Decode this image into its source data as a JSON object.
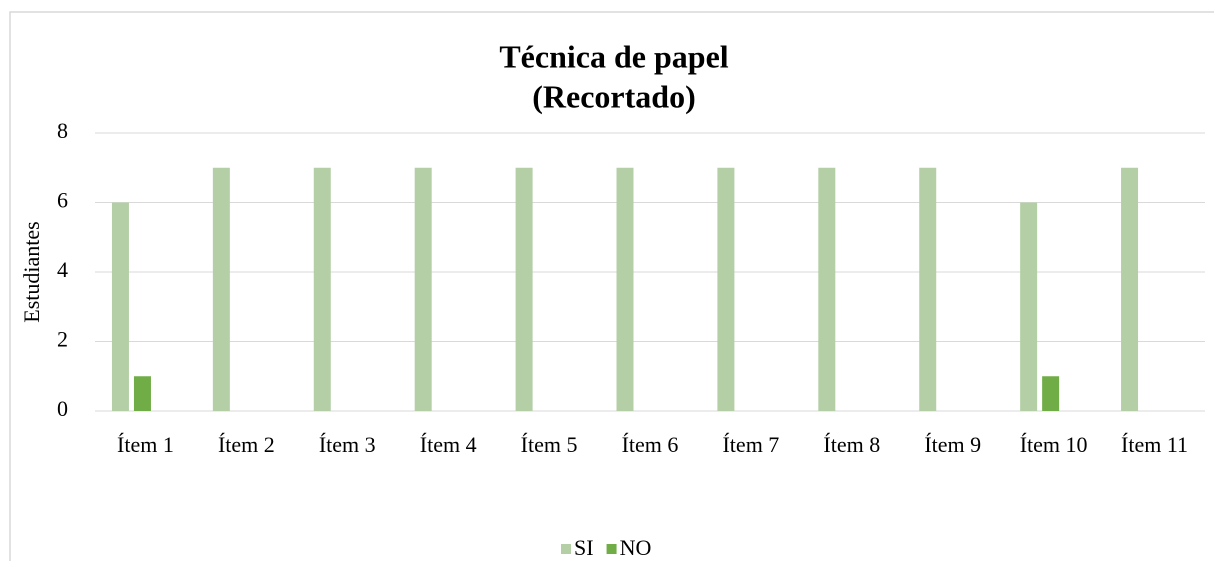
{
  "chart_data": {
    "type": "bar",
    "title": [
      "Técnica de papel",
      "(Recortado)"
    ],
    "y_label": "Estudiantes",
    "categories": [
      "Ítem 1",
      "Ítem 2",
      "Ítem 3",
      "Ítem 4",
      "Ítem 5",
      "Ítem 6",
      "Ítem 7",
      "Ítem 8",
      "Ítem 9",
      "Ítem 10",
      "Ítem 11"
    ],
    "series": [
      {
        "name": "SI",
        "color": "#b4cfa6",
        "values": [
          6,
          7,
          7,
          7,
          7,
          7,
          7,
          7,
          7,
          6,
          7
        ]
      },
      {
        "name": "NO",
        "color": "#70ad47",
        "values": [
          1,
          0,
          0,
          0,
          0,
          0,
          0,
          0,
          0,
          1,
          0
        ]
      }
    ],
    "ylim": [
      0,
      8
    ],
    "yticks": [
      0,
      2,
      4,
      6,
      8
    ],
    "grid": true,
    "legend": "bottom"
  }
}
